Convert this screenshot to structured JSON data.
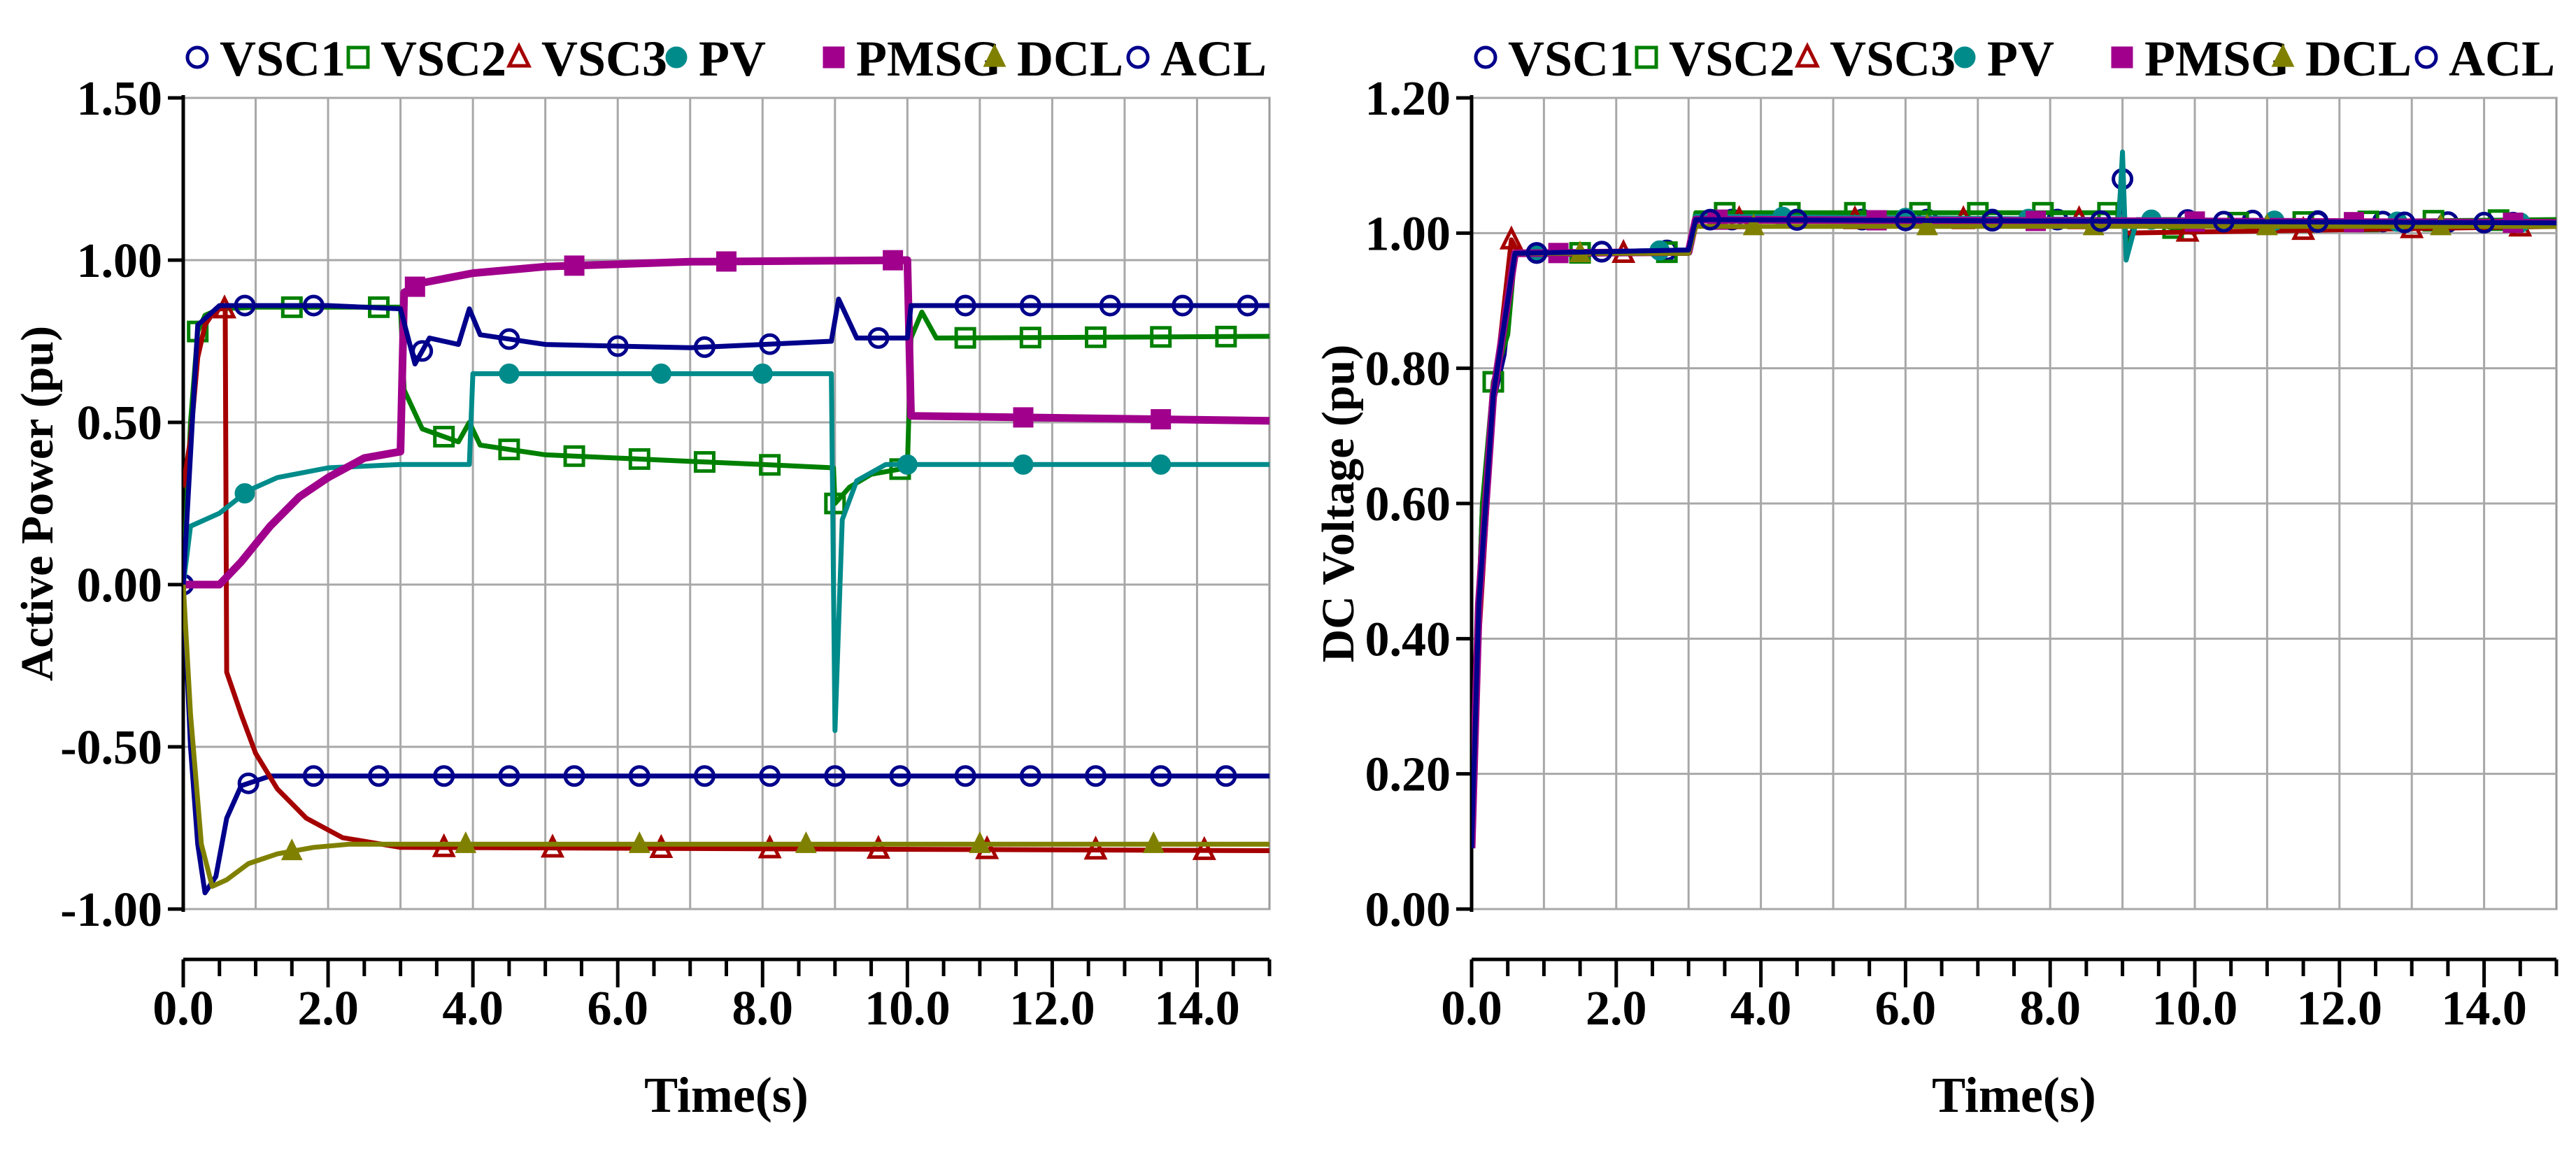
{
  "chart_data": [
    {
      "type": "line",
      "id": "active-power",
      "ylabel": "Active Power (pu)",
      "xlabel": "Time(s)",
      "xlim": [
        0,
        15
      ],
      "ylim": [
        -1,
        1.5
      ],
      "xticks": [
        0,
        2,
        4,
        6,
        8,
        10,
        12,
        14
      ],
      "xtick_labels": [
        "0.0",
        "2.0",
        "4.0",
        "6.0",
        "8.0",
        "10.0",
        "12.0",
        "14.0"
      ],
      "yticks": [
        1.5,
        1.0,
        0.5,
        0.0,
        -0.5,
        -1.0
      ],
      "ytick_labels": [
        "1.50",
        "1.00",
        "0.50",
        "0.00",
        "-0.50",
        "-1.00"
      ],
      "grid": true,
      "legend": "top",
      "series": [
        {
          "name": "VSC1",
          "color": "#00008B",
          "marker": "circle-open",
          "points": [
            [
              0,
              0
            ],
            [
              0.1,
              -0.5
            ],
            [
              0.2,
              -0.8
            ],
            [
              0.3,
              -0.95
            ],
            [
              0.45,
              -0.9
            ],
            [
              0.6,
              -0.72
            ],
            [
              0.8,
              -0.62
            ],
            [
              1.2,
              -0.59
            ],
            [
              15,
              -0.59
            ]
          ],
          "marker_x": [
            0,
            0.9,
            1.8,
            2.7,
            3.6,
            4.5,
            5.4,
            6.3,
            7.2,
            8.1,
            9.0,
            9.9,
            10.8,
            11.7,
            12.6,
            13.5,
            14.4
          ]
        },
        {
          "name": "VSC2",
          "color": "#008000",
          "marker": "square-open",
          "points": [
            [
              0,
              0
            ],
            [
              0.1,
              0.5
            ],
            [
              0.2,
              0.78
            ],
            [
              0.3,
              0.83
            ],
            [
              0.5,
              0.85
            ],
            [
              1.0,
              0.855
            ],
            [
              3.0,
              0.855
            ],
            [
              3.05,
              0.6
            ],
            [
              3.3,
              0.48
            ],
            [
              3.8,
              0.44
            ],
            [
              3.95,
              0.5
            ],
            [
              4.1,
              0.43
            ],
            [
              5,
              0.4
            ],
            [
              7,
              0.38
            ],
            [
              8,
              0.37
            ],
            [
              8.98,
              0.36
            ],
            [
              9.0,
              0.25
            ],
            [
              9.2,
              0.3
            ],
            [
              9.5,
              0.34
            ],
            [
              10.0,
              0.36
            ],
            [
              10.05,
              0.76
            ],
            [
              10.2,
              0.84
            ],
            [
              10.4,
              0.76
            ],
            [
              15,
              0.765
            ]
          ],
          "marker_x": [
            0.2,
            1.5,
            2.7,
            3.6,
            4.5,
            5.4,
            6.3,
            7.2,
            8.1,
            9.0,
            9.9,
            10.8,
            11.7,
            12.6,
            13.5,
            14.4
          ]
        },
        {
          "name": "VSC3",
          "color": "#A50000",
          "marker": "triangle-open",
          "points": [
            [
              0,
              0.3
            ],
            [
              0.1,
              0.45
            ],
            [
              0.2,
              0.7
            ],
            [
              0.3,
              0.8
            ],
            [
              0.45,
              0.85
            ],
            [
              0.58,
              0.85
            ],
            [
              0.6,
              -0.27
            ],
            [
              0.8,
              -0.4
            ],
            [
              1.0,
              -0.52
            ],
            [
              1.3,
              -0.63
            ],
            [
              1.7,
              -0.72
            ],
            [
              2.2,
              -0.78
            ],
            [
              3,
              -0.81
            ],
            [
              15,
              -0.82
            ]
          ],
          "marker_x": [
            0.57,
            3.6,
            5.1,
            6.6,
            8.1,
            9.6,
            11.1,
            12.6,
            14.1
          ]
        },
        {
          "name": "PV",
          "color": "#008B8B",
          "marker": "circle-filled",
          "points": [
            [
              0,
              0
            ],
            [
              0.1,
              0.18
            ],
            [
              0.5,
              0.22
            ],
            [
              0.9,
              0.29
            ],
            [
              1.3,
              0.33
            ],
            [
              2,
              0.36
            ],
            [
              3,
              0.37
            ],
            [
              3.95,
              0.37
            ],
            [
              4.0,
              0.65
            ],
            [
              8.95,
              0.65
            ],
            [
              9.0,
              -0.45
            ],
            [
              9.1,
              0.2
            ],
            [
              9.3,
              0.32
            ],
            [
              9.7,
              0.37
            ],
            [
              15,
              0.37
            ]
          ],
          "marker_x": [
            0.85,
            4.5,
            6.6,
            8.0,
            10.0,
            11.6,
            13.5
          ]
        },
        {
          "name": "PMSG",
          "color": "#A0008B",
          "marker": "square-filled",
          "points": [
            [
              0,
              0
            ],
            [
              0.5,
              0
            ],
            [
              0.8,
              0.07
            ],
            [
              1.2,
              0.18
            ],
            [
              1.6,
              0.27
            ],
            [
              2.0,
              0.33
            ],
            [
              2.5,
              0.39
            ],
            [
              3.0,
              0.41
            ],
            [
              3.05,
              0.9
            ],
            [
              3.3,
              0.93
            ],
            [
              4,
              0.96
            ],
            [
              5,
              0.98
            ],
            [
              7,
              0.995
            ],
            [
              10,
              1.0
            ],
            [
              10.05,
              0.52
            ],
            [
              15,
              0.505
            ]
          ],
          "marker_x": [
            3.2,
            5.4,
            7.5,
            9.8,
            11.6,
            13.5
          ]
        },
        {
          "name": "DCL",
          "color": "#808000",
          "marker": "triangle-filled",
          "points": [
            [
              0,
              0
            ],
            [
              0.1,
              -0.4
            ],
            [
              0.25,
              -0.8
            ],
            [
              0.4,
              -0.93
            ],
            [
              0.6,
              -0.91
            ],
            [
              0.9,
              -0.86
            ],
            [
              1.3,
              -0.83
            ],
            [
              1.8,
              -0.81
            ],
            [
              2.3,
              -0.8
            ],
            [
              15,
              -0.8
            ]
          ],
          "marker_x": [
            1.5,
            3.9,
            6.3,
            8.6,
            11.0,
            13.4
          ]
        },
        {
          "name": "ACL",
          "color": "#00008B",
          "marker": "circle-open",
          "points": [
            [
              0,
              0
            ],
            [
              0.2,
              0.8
            ],
            [
              0.5,
              0.86
            ],
            [
              1.0,
              0.86
            ],
            [
              2.0,
              0.86
            ],
            [
              3.0,
              0.85
            ],
            [
              3.2,
              0.68
            ],
            [
              3.4,
              0.76
            ],
            [
              3.8,
              0.74
            ],
            [
              3.95,
              0.85
            ],
            [
              4.1,
              0.77
            ],
            [
              5,
              0.74
            ],
            [
              7,
              0.73
            ],
            [
              8,
              0.74
            ],
            [
              8.95,
              0.75
            ],
            [
              9.05,
              0.88
            ],
            [
              9.3,
              0.76
            ],
            [
              10,
              0.76
            ],
            [
              10.05,
              0.86
            ],
            [
              15,
              0.86
            ]
          ],
          "marker_x": [
            0.85,
            1.8,
            3.3,
            4.5,
            6.0,
            7.2,
            8.1,
            9.6,
            10.8,
            11.7,
            12.8,
            13.8,
            14.7
          ]
        }
      ]
    },
    {
      "type": "line",
      "id": "dc-voltage",
      "ylabel": "DC Voltage (pu)",
      "xlabel": "Time(s)",
      "xlim": [
        0,
        15
      ],
      "ylim": [
        0,
        1.2
      ],
      "xticks": [
        0,
        2,
        4,
        6,
        8,
        10,
        12,
        14
      ],
      "xtick_labels": [
        "0.0",
        "2.0",
        "4.0",
        "6.0",
        "8.0",
        "10.0",
        "12.0",
        "14.0"
      ],
      "yticks": [
        1.2,
        1.0,
        0.8,
        0.6,
        0.4,
        0.2,
        0.0
      ],
      "ytick_labels": [
        "1.20",
        "1.00",
        "0.80",
        "0.60",
        "0.40",
        "0.20",
        "0.00"
      ],
      "grid": true,
      "legend": "top",
      "series": [
        {
          "name": "VSC1",
          "color": "#00008B",
          "marker": "circle-open",
          "points": [
            [
              0,
              0.09
            ],
            [
              0.05,
              0.3
            ],
            [
              0.15,
              0.6
            ],
            [
              0.3,
              0.75
            ],
            [
              0.45,
              0.82
            ],
            [
              0.6,
              0.97
            ],
            [
              3.0,
              0.975
            ],
            [
              3.1,
              1.02
            ],
            [
              8.95,
              1.02
            ],
            [
              9.0,
              1.08
            ],
            [
              9.05,
              0.98
            ],
            [
              9.2,
              1.02
            ],
            [
              15,
              1.015
            ]
          ],
          "marker_x": [
            0.9,
            1.8,
            2.7,
            3.6,
            4.5,
            5.4,
            6.3,
            7.2,
            8.1,
            9.0,
            9.9,
            10.8,
            11.7,
            12.6,
            13.5,
            14.4
          ]
        },
        {
          "name": "VSC2",
          "color": "#008000",
          "marker": "square-open",
          "points": [
            [
              0,
              0.09
            ],
            [
              0.05,
              0.3
            ],
            [
              0.15,
              0.6
            ],
            [
              0.3,
              0.78
            ],
            [
              0.5,
              0.85
            ],
            [
              0.6,
              0.97
            ],
            [
              3.0,
              0.972
            ],
            [
              3.1,
              1.03
            ],
            [
              8.95,
              1.03
            ],
            [
              9.0,
              1.1
            ],
            [
              9.05,
              0.97
            ],
            [
              9.2,
              1.02
            ],
            [
              10,
              1.0
            ],
            [
              10.2,
              1.015
            ],
            [
              15,
              1.02
            ]
          ],
          "marker_x": [
            0.3,
            1.5,
            2.7,
            3.5,
            4.4,
            5.3,
            6.2,
            7.0,
            7.9,
            8.8,
            9.7,
            10.6,
            11.5,
            12.4,
            13.3,
            14.2
          ]
        },
        {
          "name": "VSC3",
          "color": "#A50000",
          "marker": "triangle-open",
          "points": [
            [
              0,
              0.09
            ],
            [
              0.1,
              0.4
            ],
            [
              0.3,
              0.75
            ],
            [
              0.55,
              0.99
            ],
            [
              0.65,
              0.97
            ],
            [
              3.0,
              0.97
            ],
            [
              3.1,
              1.02
            ],
            [
              9.0,
              1.02
            ],
            [
              9.05,
              1.0
            ],
            [
              15,
              1.01
            ]
          ],
          "marker_x": [
            0.55,
            2.1,
            3.7,
            5.3,
            6.8,
            8.4,
            9.9,
            11.5,
            13.0,
            14.5
          ]
        },
        {
          "name": "PV",
          "color": "#008B8B",
          "marker": "circle-filled",
          "points": [
            [
              0,
              0.09
            ],
            [
              0.1,
              0.45
            ],
            [
              0.3,
              0.76
            ],
            [
              0.6,
              0.97
            ],
            [
              3.0,
              0.975
            ],
            [
              3.1,
              1.025
            ],
            [
              8.95,
              1.02
            ],
            [
              9.0,
              1.12
            ],
            [
              9.05,
              0.96
            ],
            [
              9.2,
              1.02
            ],
            [
              15,
              1.015
            ]
          ],
          "marker_x": [
            0.9,
            2.6,
            4.3,
            6.0,
            7.7,
            9.4,
            11.1,
            12.8,
            14.5
          ]
        },
        {
          "name": "PMSG",
          "color": "#A0008B",
          "marker": "square-filled",
          "points": [
            [
              0,
              0.09
            ],
            [
              0.1,
              0.45
            ],
            [
              0.3,
              0.76
            ],
            [
              0.6,
              0.97
            ],
            [
              3.0,
              0.972
            ],
            [
              3.1,
              1.02
            ],
            [
              15,
              1.015
            ]
          ],
          "marker_x": [
            1.2,
            3.4,
            5.6,
            7.8,
            10.0,
            12.2,
            14.4
          ]
        },
        {
          "name": "DCL",
          "color": "#808000",
          "marker": "triangle-filled",
          "points": [
            [
              0,
              0.09
            ],
            [
              0.1,
              0.45
            ],
            [
              0.3,
              0.76
            ],
            [
              0.6,
              0.97
            ],
            [
              3.0,
              0.97
            ],
            [
              3.1,
              1.01
            ],
            [
              15,
              1.01
            ]
          ],
          "marker_x": [
            1.5,
            3.9,
            6.3,
            8.6,
            11.0,
            13.4
          ]
        },
        {
          "name": "ACL",
          "color": "#00008B",
          "marker": "circle-open",
          "points": [
            [
              0,
              0.09
            ],
            [
              0.1,
              0.45
            ],
            [
              0.3,
              0.76
            ],
            [
              0.6,
              0.97
            ],
            [
              3.0,
              0.975
            ],
            [
              3.1,
              1.02
            ],
            [
              15,
              1.015
            ]
          ],
          "marker_x": [
            0.9,
            1.8,
            3.3,
            4.5,
            6.0,
            7.2,
            8.7,
            10.4,
            11.7,
            12.9,
            14.0
          ]
        }
      ]
    }
  ],
  "legend": [
    {
      "name": "VSC1",
      "marker": "circle-open",
      "color": "#00008B"
    },
    {
      "name": "VSC2",
      "marker": "square-open",
      "color": "#008000"
    },
    {
      "name": "VSC3",
      "marker": "triangle-open",
      "color": "#A50000"
    },
    {
      "name": "PV",
      "marker": "circle-filled",
      "color": "#008B8B"
    },
    {
      "name": "PMSG",
      "marker": "square-filled",
      "color": "#A0008B"
    },
    {
      "name": "DCL",
      "marker": "triangle-filled",
      "color": "#808000"
    },
    {
      "name": "ACL",
      "marker": "circle-open",
      "color": "#00008B"
    }
  ]
}
